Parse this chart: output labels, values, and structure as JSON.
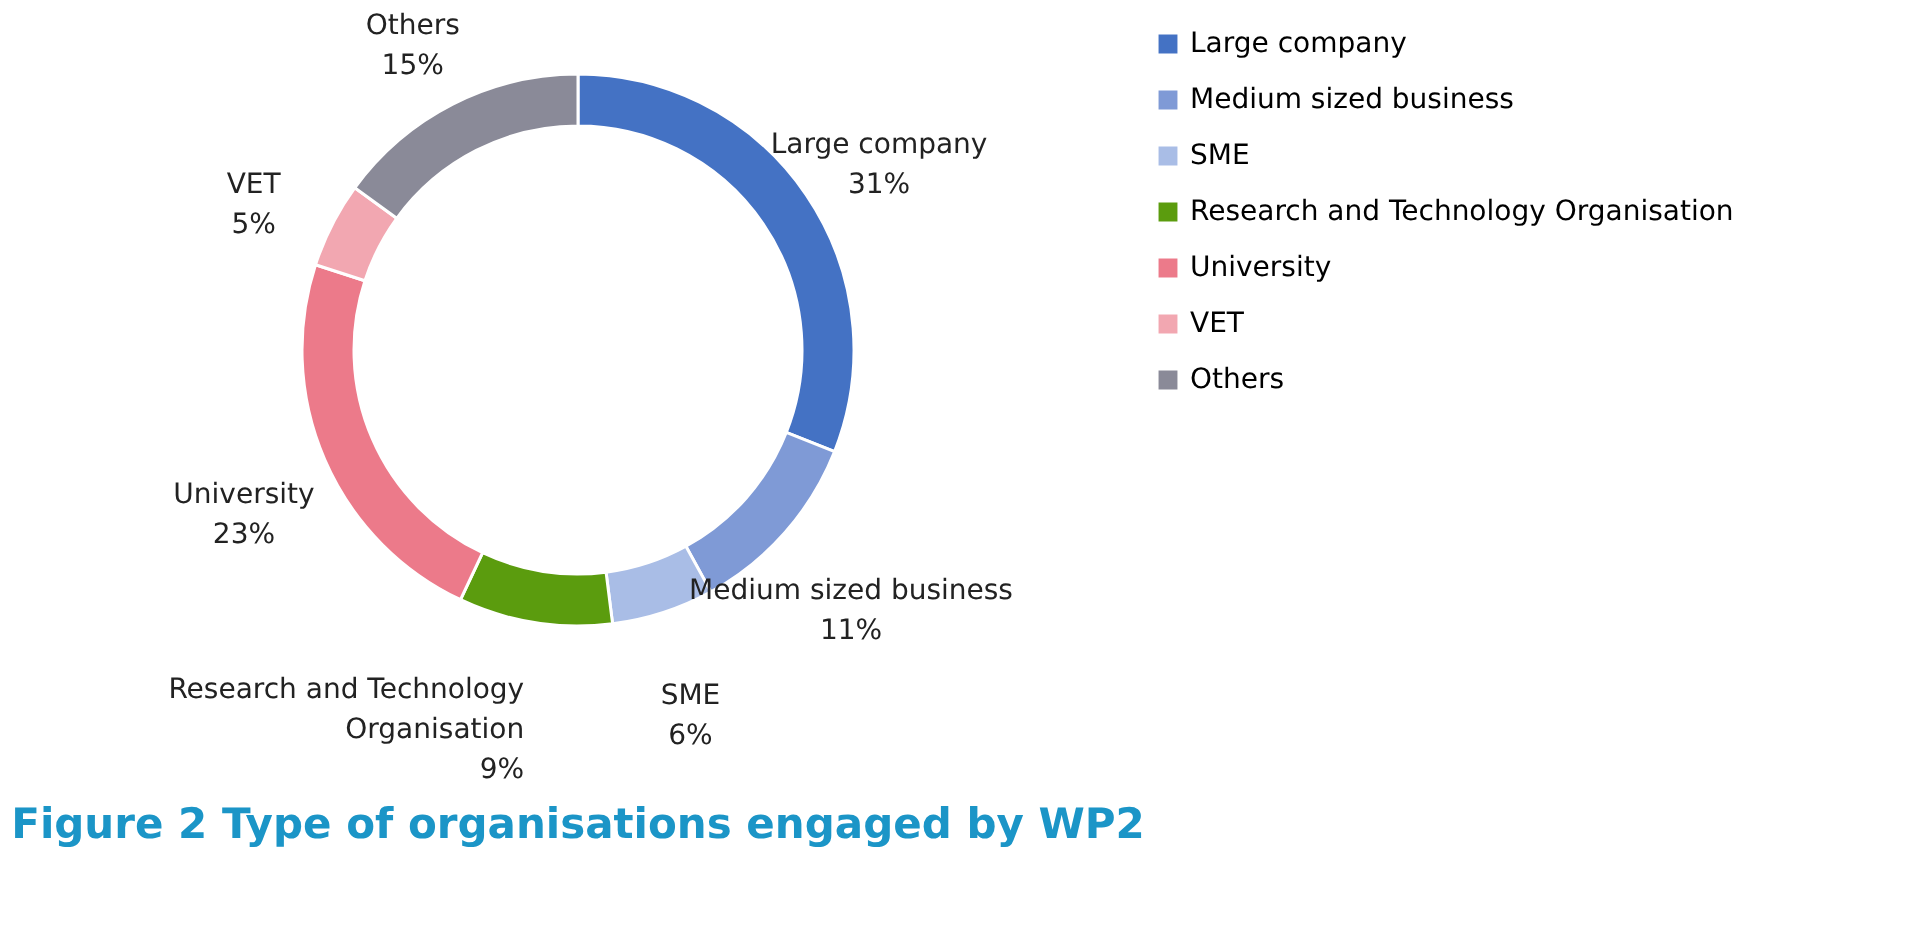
{
  "chart_data": {
    "type": "donut",
    "title": "Figure 2 Type of organisations engaged by WP2",
    "categories": [
      "Large company",
      "Medium sized business",
      "SME",
      "Research and Technology Organisation",
      "University",
      "VET",
      "Others"
    ],
    "values": [
      31,
      11,
      6,
      9,
      23,
      5,
      15
    ],
    "value_labels": [
      "31%",
      "11%",
      "6%",
      "9%",
      "23%",
      "5%",
      "15%"
    ],
    "colors": [
      "#4472c4",
      "#7f9ad6",
      "#a9bde6",
      "#5b9c0e",
      "#ec7a8a",
      "#f2a7b1",
      "#8a8a98"
    ],
    "legend": "right"
  }
}
